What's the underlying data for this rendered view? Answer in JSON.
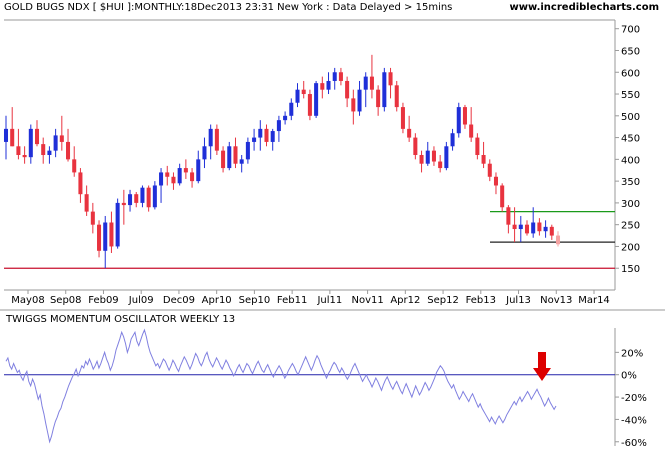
{
  "header": {
    "title": "GOLD BUGS NDX [ $HUI ]:MONTHLY:18Dec2013 23:31 New York : Data Delayed > 15mins",
    "website": "www.incrediblecharts.com"
  },
  "oscillator": {
    "title": "TWIGGS MOMENTUM OSCILLATOR WEEKLY 13"
  },
  "colors": {
    "up": "#1f2fd8",
    "down": "#e8333f",
    "last": "#f4a3a3",
    "support": "#c8102e",
    "resistance": "#1a9a1a",
    "osc_line": "#8080e0",
    "zero_line": "#2222aa",
    "arrow": "#dd0000"
  },
  "chart_data": [
    {
      "type": "candlestick",
      "title": "GOLD BUGS NDX [ $HUI ]:MONTHLY:18Dec2013 23:31 New York : Data Delayed > 15mins",
      "x_tick_labels": [
        "May08",
        "Sep08",
        "Feb09",
        "Jul09",
        "Dec09",
        "Apr10",
        "Sep10",
        "Feb11",
        "Jul11",
        "Nov11",
        "Apr12",
        "Sep12",
        "Feb13",
        "Jul13",
        "Nov13",
        "Mar14"
      ],
      "y_tick_labels": [
        "150",
        "200",
        "250",
        "300",
        "350",
        "400",
        "450",
        "500",
        "550",
        "600",
        "650",
        "700"
      ],
      "ylim": [
        100,
        720
      ],
      "grid": false,
      "horizontal_lines": [
        {
          "value": 150,
          "color": "#c8102e"
        },
        {
          "value": 280,
          "color": "#1a9a1a"
        },
        {
          "value": 210,
          "color": "#222222"
        }
      ],
      "ohlc": [
        [
          440,
          500,
          400,
          470
        ],
        [
          470,
          520,
          430,
          430
        ],
        [
          430,
          470,
          400,
          410
        ],
        [
          410,
          430,
          390,
          405
        ],
        [
          405,
          480,
          390,
          470
        ],
        [
          470,
          490,
          430,
          435
        ],
        [
          435,
          450,
          390,
          410
        ],
        [
          410,
          430,
          390,
          420
        ],
        [
          420,
          470,
          405,
          455
        ],
        [
          455,
          500,
          420,
          440
        ],
        [
          440,
          470,
          395,
          400
        ],
        [
          400,
          430,
          360,
          370
        ],
        [
          370,
          380,
          300,
          320
        ],
        [
          320,
          340,
          270,
          280
        ],
        [
          280,
          300,
          230,
          250
        ],
        [
          250,
          260,
          175,
          190
        ],
        [
          190,
          270,
          150,
          255
        ],
        [
          255,
          280,
          185,
          200
        ],
        [
          200,
          310,
          195,
          300
        ],
        [
          300,
          330,
          250,
          295
        ],
        [
          295,
          330,
          280,
          320
        ],
        [
          320,
          325,
          290,
          300
        ],
        [
          300,
          340,
          290,
          335
        ],
        [
          335,
          340,
          280,
          290
        ],
        [
          290,
          350,
          285,
          340
        ],
        [
          340,
          380,
          300,
          370
        ],
        [
          370,
          385,
          340,
          360
        ],
        [
          360,
          370,
          330,
          345
        ],
        [
          345,
          390,
          340,
          380
        ],
        [
          380,
          400,
          355,
          370
        ],
        [
          370,
          380,
          335,
          350
        ],
        [
          350,
          420,
          345,
          400
        ],
        [
          400,
          450,
          380,
          430
        ],
        [
          430,
          480,
          400,
          470
        ],
        [
          470,
          480,
          410,
          420
        ],
        [
          420,
          430,
          370,
          380
        ],
        [
          380,
          440,
          375,
          430
        ],
        [
          430,
          450,
          380,
          390
        ],
        [
          390,
          410,
          370,
          400
        ],
        [
          400,
          450,
          390,
          440
        ],
        [
          440,
          470,
          420,
          450
        ],
        [
          450,
          490,
          420,
          470
        ],
        [
          470,
          480,
          430,
          440
        ],
        [
          440,
          470,
          420,
          465
        ],
        [
          465,
          500,
          440,
          490
        ],
        [
          490,
          510,
          480,
          500
        ],
        [
          500,
          540,
          490,
          530
        ],
        [
          530,
          575,
          520,
          560
        ],
        [
          560,
          580,
          540,
          550
        ],
        [
          550,
          560,
          490,
          500
        ],
        [
          500,
          580,
          495,
          575
        ],
        [
          575,
          590,
          540,
          560
        ],
        [
          560,
          600,
          550,
          580
        ],
        [
          580,
          610,
          560,
          600
        ],
        [
          600,
          610,
          570,
          580
        ],
        [
          580,
          590,
          520,
          540
        ],
        [
          540,
          560,
          480,
          510
        ],
        [
          510,
          580,
          500,
          560
        ],
        [
          560,
          600,
          520,
          590
        ],
        [
          590,
          640,
          540,
          560
        ],
        [
          560,
          570,
          500,
          520
        ],
        [
          520,
          610,
          510,
          600
        ],
        [
          600,
          610,
          540,
          570
        ],
        [
          570,
          580,
          510,
          520
        ],
        [
          520,
          530,
          460,
          470
        ],
        [
          470,
          500,
          440,
          450
        ],
        [
          450,
          460,
          400,
          410
        ],
        [
          410,
          420,
          370,
          390
        ],
        [
          390,
          440,
          385,
          420
        ],
        [
          420,
          430,
          385,
          395
        ],
        [
          395,
          410,
          370,
          380
        ],
        [
          380,
          440,
          375,
          430
        ],
        [
          430,
          470,
          420,
          460
        ],
        [
          460,
          530,
          450,
          520
        ],
        [
          520,
          525,
          470,
          480
        ],
        [
          480,
          520,
          440,
          450
        ],
        [
          450,
          460,
          400,
          410
        ],
        [
          410,
          440,
          380,
          390
        ],
        [
          390,
          400,
          350,
          360
        ],
        [
          360,
          370,
          320,
          340
        ],
        [
          340,
          345,
          280,
          290
        ],
        [
          290,
          295,
          230,
          250
        ],
        [
          250,
          290,
          210,
          240
        ],
        [
          240,
          270,
          210,
          250
        ],
        [
          250,
          260,
          225,
          230
        ],
        [
          230,
          290,
          220,
          255
        ],
        [
          255,
          265,
          225,
          235
        ],
        [
          235,
          260,
          220,
          245
        ],
        [
          245,
          250,
          215,
          225
        ],
        [
          225,
          235,
          200,
          205
        ]
      ]
    },
    {
      "type": "line",
      "title": "TWIGGS MOMENTUM OSCILLATOR WEEKLY 13",
      "y_tick_labels": [
        "20%",
        "0%",
        "-20%",
        "-40%",
        "-60%"
      ],
      "ylim": [
        -62,
        40
      ],
      "reference_line": 0,
      "values": [
        12,
        15,
        8,
        5,
        10,
        6,
        2,
        4,
        -2,
        -5,
        0,
        3,
        -6,
        -10,
        -4,
        -8,
        -15,
        -22,
        -18,
        -28,
        -35,
        -44,
        -52,
        -60,
        -55,
        -48,
        -42,
        -38,
        -33,
        -30,
        -24,
        -20,
        -15,
        -10,
        -6,
        -2,
        1,
        5,
        -1,
        3,
        8,
        6,
        12,
        9,
        14,
        10,
        5,
        8,
        12,
        6,
        10,
        15,
        20,
        14,
        10,
        4,
        8,
        14,
        22,
        27,
        32,
        38,
        34,
        28,
        20,
        25,
        32,
        35,
        38,
        30,
        26,
        31,
        36,
        40,
        34,
        26,
        20,
        16,
        12,
        8,
        10,
        6,
        10,
        14,
        12,
        8,
        4,
        8,
        13,
        10,
        6,
        3,
        8,
        12,
        16,
        13,
        9,
        5,
        9,
        14,
        19,
        16,
        11,
        8,
        12,
        17,
        20,
        14,
        10,
        7,
        11,
        15,
        12,
        8,
        5,
        9,
        13,
        10,
        6,
        3,
        -1,
        2,
        6,
        9,
        5,
        2,
        6,
        10,
        8,
        4,
        1,
        5,
        9,
        12,
        8,
        4,
        2,
        6,
        9,
        5,
        1,
        -2,
        2,
        5,
        8,
        5,
        1,
        -3,
        0,
        4,
        7,
        10,
        7,
        3,
        0,
        4,
        8,
        12,
        16,
        12,
        8,
        4,
        8,
        13,
        17,
        14,
        9,
        5,
        1,
        -3,
        1,
        4,
        8,
        11,
        9,
        5,
        2,
        6,
        3,
        -1,
        -4,
        -1,
        3,
        7,
        10,
        6,
        2,
        -2,
        -6,
        -3,
        0,
        -4,
        -7,
        -11,
        -7,
        -3,
        -6,
        -10,
        -14,
        -9,
        -5,
        -2,
        -6,
        -10,
        -13,
        -9,
        -6,
        -10,
        -14,
        -17,
        -12,
        -8,
        -12,
        -16,
        -20,
        -15,
        -10,
        -14,
        -18,
        -15,
        -11,
        -7,
        -10,
        -14,
        -11,
        -7,
        -3,
        2,
        5,
        8,
        6,
        3,
        -2,
        -6,
        -9,
        -12,
        -9,
        -14,
        -18,
        -22,
        -19,
        -15,
        -18,
        -21,
        -24,
        -20,
        -17,
        -21,
        -25,
        -29,
        -26,
        -30,
        -33,
        -36,
        -39,
        -42,
        -38,
        -41,
        -44,
        -40,
        -37,
        -40,
        -43,
        -40,
        -36,
        -33,
        -30,
        -27,
        -24,
        -27,
        -23,
        -20,
        -24,
        -21,
        -18,
        -15,
        -18,
        -22,
        -19,
        -16,
        -13,
        -17,
        -20,
        -24,
        -28,
        -25,
        -21,
        -25,
        -28,
        -31,
        -28
      ],
      "annotation": "down-arrow"
    }
  ]
}
